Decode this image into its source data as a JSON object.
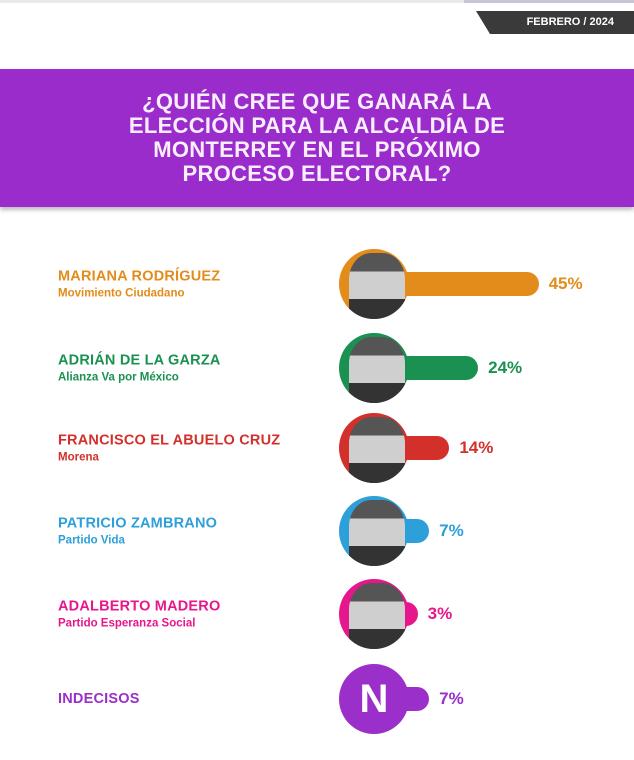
{
  "header": {
    "date": "FEBRERO / 2024"
  },
  "title": "¿QUIÉN CREE QUE GANARÁ LA ELECCIÓN PARA LA ALCALDÍA DE MONTERREY EN EL PRÓXIMO PROCESO ELECTORAL?",
  "chart_data": {
    "type": "bar",
    "orientation": "horizontal",
    "title": "¿QUIÉN CREE QUE GANARÁ LA ELECCIÓN PARA LA ALCALDÍA DE MONTERREY EN EL PRÓXIMO PROCESO ELECTORAL?",
    "categories": [
      "MARIANA RODRÍGUEZ",
      "ADRIÁN DE LA GARZA",
      "FRANCISCO EL ABUELO CRUZ",
      "PATRICIO ZAMBRANO",
      "ADALBERTO MADERO",
      "INDECISOS"
    ],
    "values": [
      45,
      24,
      14,
      7,
      3,
      7
    ],
    "unit": "%",
    "items": [
      {
        "name": "MARIANA RODRÍGUEZ",
        "party": "Movimiento Ciudadano",
        "value": 45,
        "label": "45%",
        "color": "#e38b1b"
      },
      {
        "name": "ADRIÁN DE LA GARZA",
        "party": "Alianza Va por México",
        "value": 24,
        "label": "24%",
        "color": "#1a9150"
      },
      {
        "name": "FRANCISCO EL ABUELO CRUZ",
        "party": "Morena",
        "value": 14,
        "label": "14%",
        "color": "#d3302b"
      },
      {
        "name": "PATRICIO ZAMBRANO",
        "party": "Partido Vida",
        "value": 7,
        "label": "7%",
        "color": "#2d9fd9"
      },
      {
        "name": "ADALBERTO MADERO",
        "party": "Partido Esperanza Social",
        "value": 3,
        "label": "3%",
        "color": "#e6168c"
      },
      {
        "name": "INDECISOS",
        "party": "",
        "value": 7,
        "label": "7%",
        "color": "#9b2fc9",
        "icon_letter": "N"
      }
    ]
  }
}
